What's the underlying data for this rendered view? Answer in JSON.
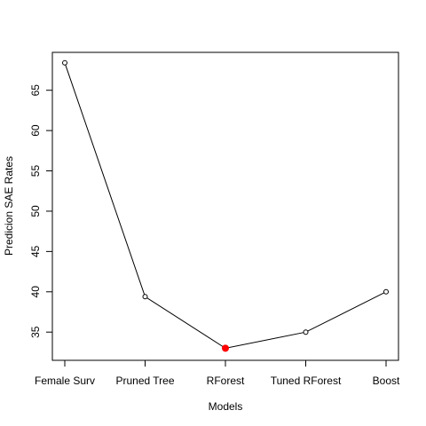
{
  "chart_data": {
    "type": "line",
    "title": "",
    "xlabel": "Models",
    "ylabel": "Predicion SAE Rates",
    "categories": [
      "Female Surv",
      "Pruned Tree",
      "RForest",
      "Tuned RForest",
      "Boost"
    ],
    "values": [
      68.4,
      39.4,
      33.0,
      35.0,
      40.0
    ],
    "highlight_index": 2,
    "highlight_color": "#ff0000",
    "line_color": "#000000",
    "yticks": [
      35,
      40,
      45,
      50,
      55,
      60,
      65
    ],
    "ylim": [
      31.5,
      69.7
    ],
    "grid": false,
    "legend": "none"
  }
}
